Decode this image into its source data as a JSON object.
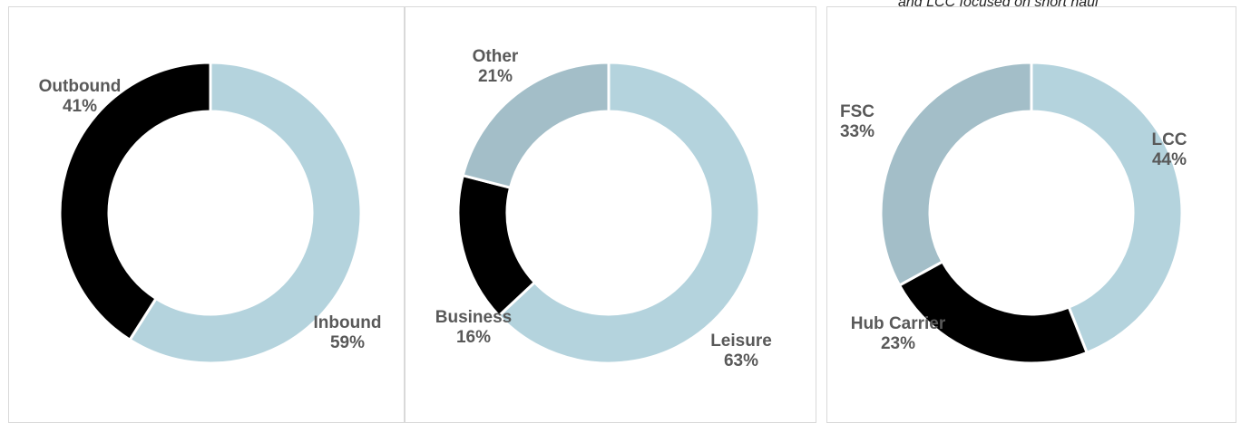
{
  "note": "and LCC focused on short haul",
  "chart_data": [
    {
      "type": "pie",
      "donut": true,
      "categories": [
        "Inbound",
        "Outbound"
      ],
      "values": [
        59,
        41
      ],
      "value_labels": [
        "59%",
        "41%"
      ],
      "colors": [
        "#b4d3dd",
        "#000000"
      ]
    },
    {
      "type": "pie",
      "donut": true,
      "categories": [
        "Leisure",
        "Business",
        "Other"
      ],
      "values": [
        63,
        16,
        21
      ],
      "value_labels": [
        "63%",
        "16%",
        "21%"
      ],
      "colors": [
        "#b4d3dd",
        "#000000",
        "#a3bec8"
      ]
    },
    {
      "type": "pie",
      "donut": true,
      "categories": [
        "LCC",
        "Hub Carrier",
        "FSC"
      ],
      "values": [
        44,
        23,
        33
      ],
      "value_labels": [
        "44%",
        "23%",
        "33%"
      ],
      "colors": [
        "#b4d3dd",
        "#000000",
        "#a3bec8"
      ]
    }
  ]
}
